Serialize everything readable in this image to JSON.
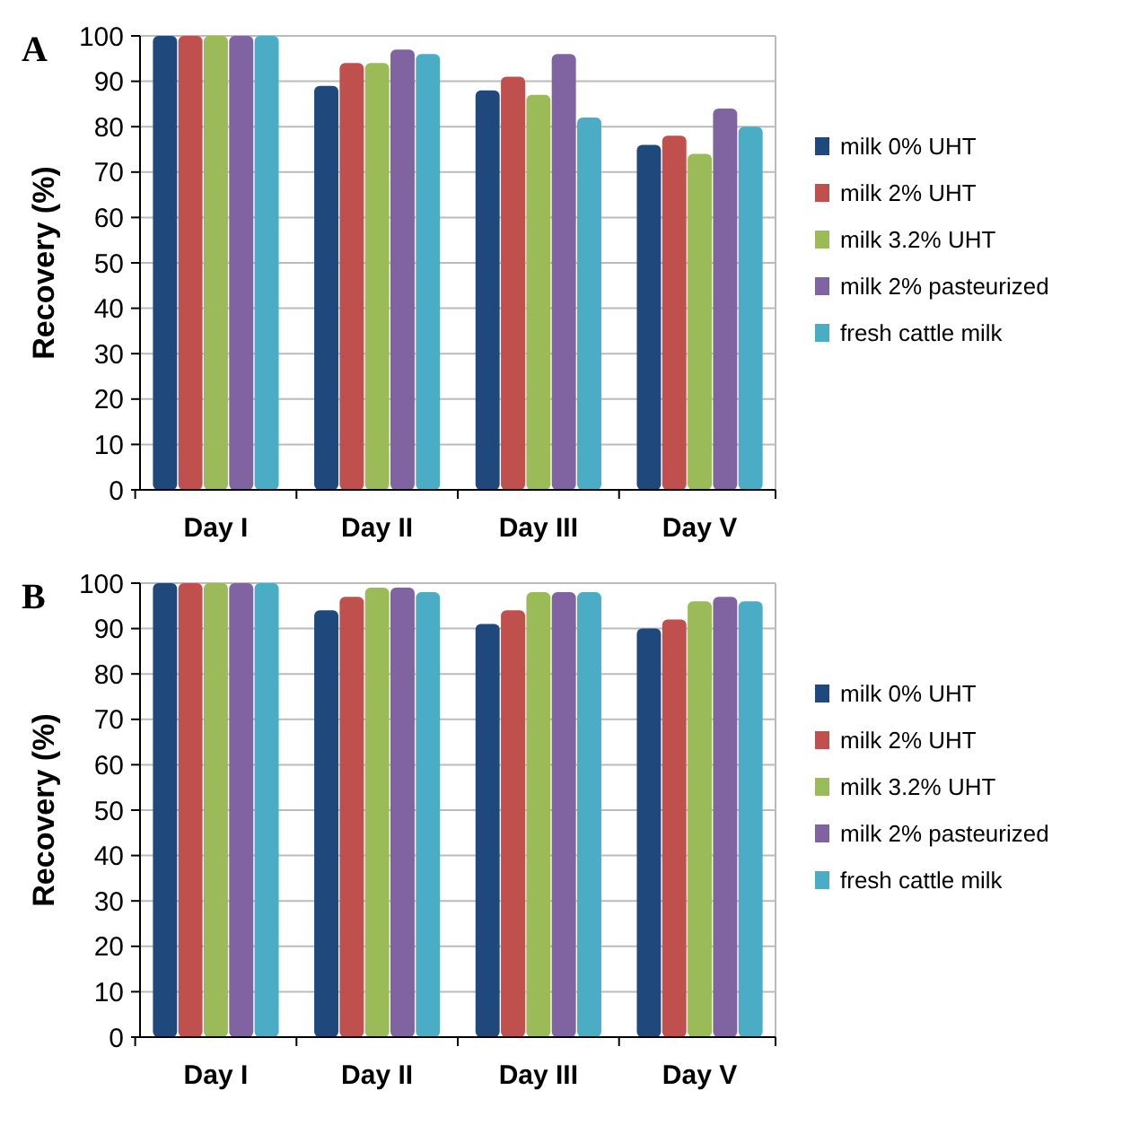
{
  "chart_data": [
    {
      "type": "bar",
      "title": "A",
      "ylabel": "Recovery (%)",
      "categories": [
        "Day I",
        "Day II",
        "Day III",
        "Day V"
      ],
      "ylim": [
        0,
        100
      ],
      "yticks": [
        0,
        10,
        20,
        30,
        40,
        50,
        60,
        70,
        80,
        90,
        100
      ],
      "grid": "y",
      "legend": "right",
      "series": [
        {
          "name": "milk 0% UHT",
          "color": "#1f497d",
          "values": [
            100,
            89,
            88,
            76
          ]
        },
        {
          "name": "milk 2% UHT",
          "color": "#c0504d",
          "values": [
            100,
            94,
            91,
            78
          ]
        },
        {
          "name": "milk 3.2% UHT",
          "color": "#9bbb59",
          "values": [
            100,
            94,
            87,
            74
          ]
        },
        {
          "name": "milk 2% pasteurized",
          "color": "#8064a2",
          "values": [
            100,
            97,
            96,
            84
          ]
        },
        {
          "name": "fresh cattle milk",
          "color": "#4bacc6",
          "values": [
            100,
            96,
            82,
            80
          ]
        }
      ]
    },
    {
      "type": "bar",
      "title": "B",
      "ylabel": "Recovery (%)",
      "categories": [
        "Day I",
        "Day II",
        "Day III",
        "Day V"
      ],
      "ylim": [
        0,
        100
      ],
      "yticks": [
        0,
        10,
        20,
        30,
        40,
        50,
        60,
        70,
        80,
        90,
        100
      ],
      "grid": "y",
      "legend": "right",
      "series": [
        {
          "name": "milk 0% UHT",
          "color": "#1f497d",
          "values": [
            100,
            94,
            91,
            90
          ]
        },
        {
          "name": "milk 2% UHT",
          "color": "#c0504d",
          "values": [
            100,
            97,
            94,
            92
          ]
        },
        {
          "name": "milk 3.2% UHT",
          "color": "#9bbb59",
          "values": [
            100,
            99,
            98,
            96
          ]
        },
        {
          "name": "milk 2% pasteurized",
          "color": "#8064a2",
          "values": [
            100,
            99,
            98,
            97
          ]
        },
        {
          "name": "fresh cattle milk",
          "color": "#4bacc6",
          "values": [
            100,
            98,
            98,
            96
          ]
        }
      ]
    }
  ]
}
